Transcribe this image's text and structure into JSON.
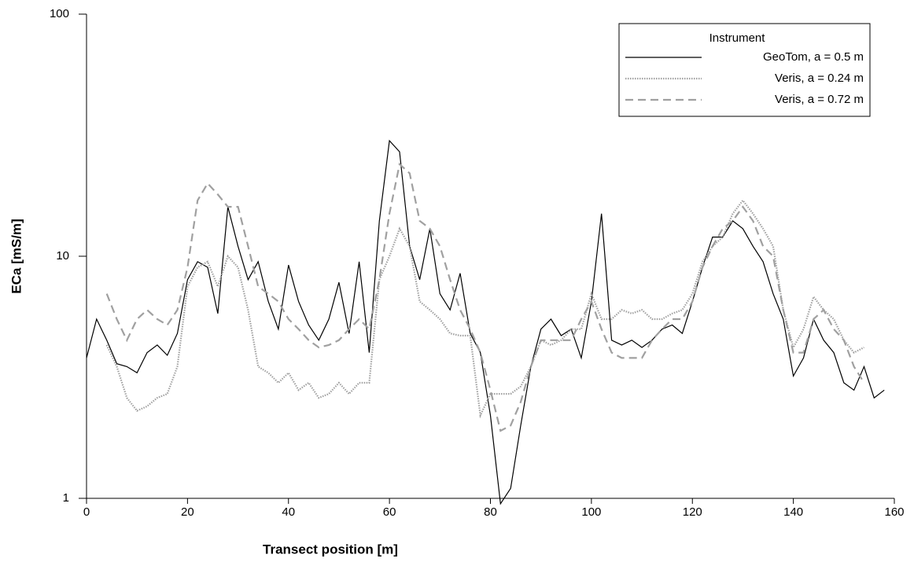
{
  "chart_data": {
    "type": "line",
    "xlabel": "Transect position [m]",
    "ylabel": "ECa [mS/m]",
    "xlim": [
      0,
      160
    ],
    "xticks": [
      0,
      20,
      40,
      60,
      80,
      100,
      120,
      140,
      160
    ],
    "ylim": [
      1,
      100
    ],
    "yticks": [
      1,
      10,
      100
    ],
    "yscale": "log",
    "legend_title": "Instrument",
    "legend_loc": "upper right",
    "x": [
      0,
      2,
      4,
      6,
      8,
      10,
      12,
      14,
      16,
      18,
      20,
      22,
      24,
      26,
      28,
      30,
      32,
      34,
      36,
      38,
      40,
      42,
      44,
      46,
      48,
      50,
      52,
      54,
      56,
      58,
      60,
      62,
      64,
      66,
      68,
      70,
      72,
      74,
      76,
      78,
      80,
      82,
      84,
      86,
      88,
      90,
      92,
      94,
      96,
      98,
      100,
      102,
      104,
      106,
      108,
      110,
      112,
      114,
      116,
      118,
      120,
      122,
      124,
      126,
      128,
      130,
      132,
      134,
      136,
      138,
      140,
      142,
      144,
      146,
      148,
      150,
      152,
      154,
      156,
      158
    ],
    "series": [
      {
        "name": "GeoTom, a = 0.5 m",
        "color": "#000000",
        "linestyle": "solid",
        "values": [
          3.8,
          5.5,
          4.5,
          3.6,
          3.5,
          3.3,
          4.0,
          4.3,
          3.9,
          4.8,
          8.0,
          9.5,
          9.0,
          5.8,
          16,
          11,
          8.0,
          9.5,
          6.5,
          5.0,
          9.2,
          6.5,
          5.2,
          4.5,
          5.5,
          7.8,
          4.8,
          9.5,
          4.0,
          14,
          30,
          27,
          11,
          8.0,
          13,
          7.0,
          6.0,
          8.5,
          4.8,
          4.0,
          2.2,
          0.95,
          1.1,
          2.0,
          3.5,
          5.0,
          5.5,
          4.7,
          5.0,
          3.8,
          6.5,
          15,
          4.5,
          4.3,
          4.5,
          4.2,
          4.5,
          5.0,
          5.2,
          4.8,
          6.5,
          9.0,
          12,
          12,
          14,
          13,
          11,
          9.5,
          7.0,
          5.5,
          3.2,
          3.8,
          5.5,
          4.5,
          4.0,
          3.0,
          2.8,
          3.5,
          2.6,
          2.8
        ]
      },
      {
        "name": "Veris, a = 0.24 m",
        "color": "#a0a0a0",
        "linestyle": "dotted",
        "values": [
          null,
          null,
          4.3,
          3.5,
          2.6,
          2.3,
          2.4,
          2.6,
          2.7,
          3.5,
          7.5,
          9.0,
          9.5,
          7.5,
          10,
          9.0,
          6.0,
          3.5,
          3.3,
          3.0,
          3.3,
          2.8,
          3.0,
          2.6,
          2.7,
          3.0,
          2.7,
          3.0,
          3.0,
          8.0,
          10,
          13,
          11,
          6.5,
          6.0,
          5.5,
          4.8,
          4.7,
          4.7,
          2.2,
          2.7,
          2.7,
          2.7,
          2.9,
          3.5,
          4.5,
          4.3,
          4.5,
          5.0,
          5.0,
          7.0,
          5.5,
          5.5,
          6.0,
          5.8,
          6.0,
          5.5,
          5.5,
          5.8,
          6.0,
          7.0,
          9.5,
          11,
          12,
          15,
          17,
          15,
          13,
          11,
          6.0,
          4.2,
          5.0,
          6.8,
          6.0,
          5.5,
          4.5,
          4.0,
          4.2,
          null,
          null
        ]
      },
      {
        "name": "Veris, a = 0.72 m",
        "color": "#a0a0a0",
        "linestyle": "dashed",
        "values": [
          null,
          null,
          7.0,
          5.5,
          4.5,
          5.5,
          6.0,
          5.5,
          5.2,
          6.0,
          9.0,
          17,
          20,
          18,
          16,
          16,
          11,
          7.5,
          7.0,
          6.5,
          5.5,
          5.0,
          4.5,
          4.2,
          4.3,
          4.5,
          5.0,
          5.5,
          5.0,
          8.0,
          15,
          24,
          22,
          14,
          13,
          11,
          8.0,
          6.0,
          5.0,
          4.0,
          2.8,
          1.9,
          2.0,
          2.5,
          3.5,
          4.5,
          4.5,
          4.5,
          4.5,
          5.5,
          6.5,
          5.0,
          4.0,
          3.8,
          3.8,
          3.8,
          4.5,
          5.0,
          5.5,
          5.5,
          6.5,
          9.0,
          11,
          13,
          14,
          16,
          14,
          11,
          10,
          6.0,
          4.0,
          4.0,
          5.5,
          6.0,
          5.0,
          4.5,
          3.5,
          3.0,
          null,
          null
        ]
      }
    ]
  }
}
